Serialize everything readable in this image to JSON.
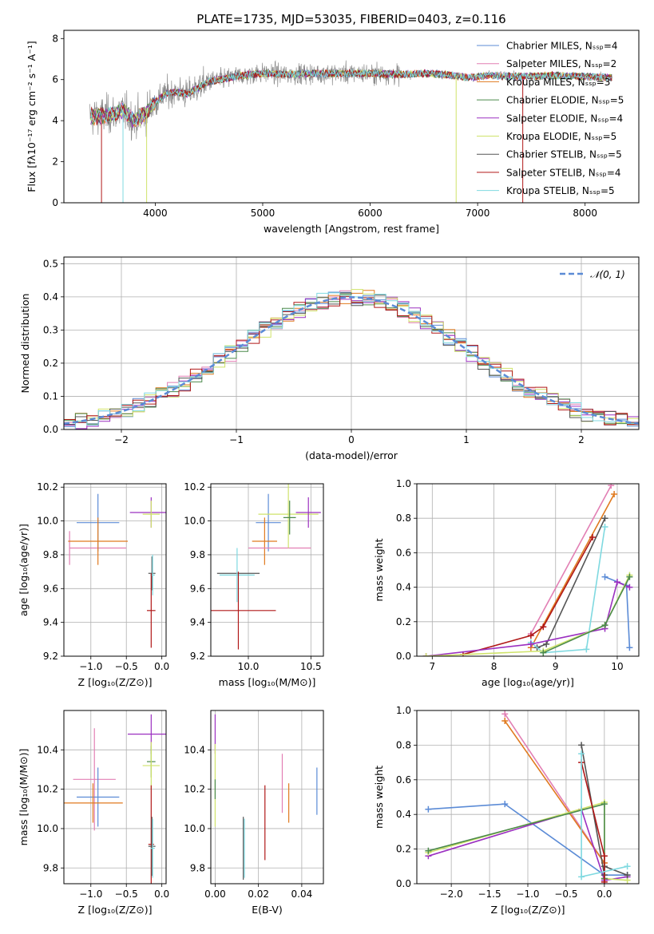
{
  "figure": {
    "title": "PLATE=1735, MJD=53035, FIBERID=0403, z=0.116"
  },
  "colors": {
    "Chabrier MILES": "#5b8bd6",
    "Salpeter MILES": "#e27fb4",
    "Kroupa MILES": "#e07a1f",
    "Chabrier ELODIE": "#4c8a4c",
    "Salpeter ELODIE": "#9b30c0",
    "Kroupa ELODIE": "#cfe36a",
    "Chabrier STELIB": "#555555",
    "Salpeter STELIB": "#b01818",
    "Kroupa STELIB": "#7fd9e0",
    "observed": "#8c8c8c",
    "normal": "#5b8bd6"
  },
  "chart_data": [
    {
      "id": "spectrum",
      "type": "line",
      "xlabel": "wavelength [Angstrom, rest frame]",
      "ylabel": "Flux [fλ10⁻¹⁷ erg cm⁻² s⁻¹ A⁻¹]",
      "xlim": [
        3150,
        8500
      ],
      "ylim": [
        0,
        8.4
      ],
      "xticks": [
        4000,
        5000,
        6000,
        7000,
        8000
      ],
      "yticks": [
        0,
        2,
        4,
        6,
        8
      ],
      "grid": false,
      "legend": "top-right",
      "legend_entries": [
        "Chabrier MILES, Nₛₛₚ=4",
        "Salpeter MILES, Nₛₛₚ=2",
        "Kroupa MILES, Nₛₛₚ=3",
        "Chabrier ELODIE, Nₛₛₚ=5",
        "Salpeter ELODIE, Nₛₛₚ=4",
        "Kroupa ELODIE, Nₛₛₚ=5",
        "Chabrier STELIB, Nₛₛₚ=5",
        "Salpeter STELIB, Nₛₛₚ=4",
        "Kroupa STELIB, Nₛₛₚ=5"
      ],
      "continuum_points": [
        [
          3400,
          4.2
        ],
        [
          3600,
          4.3
        ],
        [
          3700,
          4.5
        ],
        [
          3800,
          4.0
        ],
        [
          3900,
          4.3
        ],
        [
          4000,
          4.9
        ],
        [
          4100,
          5.3
        ],
        [
          4200,
          5.4
        ],
        [
          4300,
          5.3
        ],
        [
          4500,
          5.9
        ],
        [
          4800,
          6.2
        ],
        [
          5000,
          6.3
        ],
        [
          5200,
          6.25
        ],
        [
          5500,
          6.3
        ],
        [
          6000,
          6.3
        ],
        [
          6300,
          6.25
        ],
        [
          6500,
          6.3
        ],
        [
          6700,
          6.25
        ],
        [
          6900,
          6.1
        ],
        [
          7100,
          6.2
        ],
        [
          7400,
          6.15
        ],
        [
          7700,
          6.2
        ],
        [
          8000,
          6.15
        ],
        [
          8250,
          6.1
        ]
      ]
    },
    {
      "id": "residual-hist",
      "type": "line",
      "xlabel": "(data-model)/error",
      "ylabel": "Normed distribution",
      "xlim": [
        -2.5,
        2.5
      ],
      "ylim": [
        0,
        0.52
      ],
      "xticks": [
        -2,
        -1,
        0,
        1,
        2
      ],
      "yticks": [
        0.0,
        0.1,
        0.2,
        0.3,
        0.4,
        0.5
      ],
      "grid": true,
      "legend": "top-right",
      "legend_entries": [
        "𝒩(0, 1)"
      ],
      "bin_width": 0.1
    },
    {
      "id": "age-vs-Z",
      "type": "scatter",
      "xlabel": "Z [log₁₀(Z/Z⊙)]",
      "ylabel": "age  [log₁₀(age/yr)]",
      "xlim": [
        -1.38,
        0.06
      ],
      "ylim": [
        9.2,
        10.22
      ],
      "xticks": [
        -1.0,
        -0.5,
        0.0
      ],
      "yticks": [
        9.2,
        9.4,
        9.6,
        9.8,
        10.0,
        10.2
      ],
      "grid": true,
      "points": [
        {
          "model": "Salpeter MILES",
          "x": -1.3,
          "xerr": 0,
          "y": 9.84,
          "yerr": 0.1
        },
        {
          "model": "Salpeter MILES",
          "x": -0.9,
          "xerr": 0.4,
          "y": 9.84,
          "yerr": 0
        },
        {
          "model": "Chabrier MILES",
          "x": -0.9,
          "xerr": 0.3,
          "y": 9.99,
          "yerr": 0.17
        },
        {
          "model": "Kroupa MILES",
          "x": -0.9,
          "xerr": 0.42,
          "y": 9.88,
          "yerr": 0.14
        },
        {
          "model": "Salpeter ELODIE",
          "x": -0.15,
          "xerr": 0.3,
          "y": 10.05,
          "yerr": 0.09
        },
        {
          "model": "Kroupa ELODIE",
          "x": -0.15,
          "xerr": 0.12,
          "y": 10.04,
          "yerr": 0.08
        },
        {
          "model": "Chabrier STELIB",
          "x": -0.14,
          "xerr": 0.05,
          "y": 9.69,
          "yerr": 0.1
        },
        {
          "model": "Kroupa STELIB",
          "x": -0.13,
          "xerr": 0.03,
          "y": 9.68,
          "yerr": 0.12
        },
        {
          "model": "Salpeter STELIB",
          "x": -0.15,
          "xerr": 0.06,
          "y": 9.47,
          "yerr": 0.22
        }
      ]
    },
    {
      "id": "age-vs-mass",
      "type": "scatter",
      "xlabel": "mass [log₁₀(M/M⊙)]",
      "ylabel": "",
      "xlim": [
        9.7,
        10.6
      ],
      "ylim": [
        9.2,
        10.22
      ],
      "xticks": [
        10.0,
        10.5
      ],
      "yticks": [
        9.2,
        9.4,
        9.6,
        9.8,
        10.0,
        10.2
      ],
      "grid": true,
      "points": [
        {
          "model": "Chabrier STELIB",
          "x": 9.92,
          "xerr": 0.17,
          "y": 9.69,
          "yerr": 0
        },
        {
          "model": "Kroupa STELIB",
          "x": 9.91,
          "xerr": 0.14,
          "y": 9.68,
          "yerr": 0.16
        },
        {
          "model": "Salpeter STELIB",
          "x": 9.92,
          "xerr": 0.3,
          "y": 9.47,
          "yerr": 0.23
        },
        {
          "model": "Chabrier MILES",
          "x": 10.16,
          "xerr": 0.1,
          "y": 9.99,
          "yerr": 0.17
        },
        {
          "model": "Kroupa MILES",
          "x": 10.13,
          "xerr": 0.1,
          "y": 9.88,
          "yerr": 0.14
        },
        {
          "model": "Salpeter MILES",
          "x": 10.25,
          "xerr": 0.25,
          "y": 9.84,
          "yerr": 0
        },
        {
          "model": "Kroupa ELODIE",
          "x": 10.32,
          "xerr": 0.24,
          "y": 10.04,
          "yerr": 0.2
        },
        {
          "model": "Chabrier ELODIE",
          "x": 10.33,
          "xerr": 0.05,
          "y": 10.02,
          "yerr": 0.1
        },
        {
          "model": "Salpeter ELODIE",
          "x": 10.48,
          "xerr": 0.1,
          "y": 10.05,
          "yerr": 0.09
        }
      ]
    },
    {
      "id": "mass-weight-vs-age",
      "type": "line",
      "xlabel": "age  [log₁₀(age/yr)]",
      "ylabel": "mass weight",
      "xlim": [
        6.75,
        10.35
      ],
      "ylim": [
        0,
        1.0
      ],
      "xticks": [
        7,
        8,
        9,
        10
      ],
      "yticks": [
        0.0,
        0.2,
        0.4,
        0.6,
        0.8,
        1.0
      ],
      "grid": true,
      "series": [
        {
          "model": "Salpeter MILES",
          "x": [
            8.6,
            9.9
          ],
          "y": [
            0.13,
            0.99
          ]
        },
        {
          "model": "Kroupa MILES",
          "x": [
            8.6,
            9.95
          ],
          "y": [
            0.05,
            0.94
          ]
        },
        {
          "model": "Chabrier STELIB",
          "x": [
            8.7,
            8.85,
            9.8
          ],
          "y": [
            0.05,
            0.07,
            0.8
          ]
        },
        {
          "model": "Salpeter STELIB",
          "x": [
            7.5,
            8.6,
            8.8,
            9.6
          ],
          "y": [
            0.01,
            0.12,
            0.17,
            0.69
          ]
        },
        {
          "model": "Kroupa STELIB",
          "x": [
            8.6,
            8.8,
            9.5,
            9.8
          ],
          "y": [
            0.08,
            0.02,
            0.04,
            0.75
          ]
        },
        {
          "model": "Chabrier MILES",
          "x": [
            9.8,
            10.15,
            10.2
          ],
          "y": [
            0.46,
            0.41,
            0.05
          ]
        },
        {
          "model": "Salpeter ELODIE",
          "x": [
            6.9,
            8.6,
            9.8,
            10.0,
            10.2
          ],
          "y": [
            0.0,
            0.07,
            0.16,
            0.43,
            0.4
          ]
        },
        {
          "model": "Kroupa ELODIE",
          "x": [
            6.9,
            8.8,
            9.8,
            10.2
          ],
          "y": [
            0.0,
            0.03,
            0.18,
            0.47
          ]
        },
        {
          "model": "Chabrier ELODIE",
          "x": [
            8.8,
            9.8,
            10.2
          ],
          "y": [
            0.02,
            0.18,
            0.46
          ]
        }
      ]
    },
    {
      "id": "mass-vs-Z",
      "type": "scatter",
      "xlabel": "Z [log₁₀(Z/Z⊙)]",
      "ylabel": "mass [log₁₀(M/M⊙)]",
      "xlim": [
        -1.38,
        0.06
      ],
      "ylim": [
        9.72,
        10.6
      ],
      "xticks": [
        -1.0,
        -0.5,
        0.0
      ],
      "yticks": [
        9.8,
        10.0,
        10.2,
        10.4
      ],
      "grid": true,
      "points": [
        {
          "model": "Salpeter MILES",
          "x": -0.95,
          "xerr": 0.3,
          "y": 10.25,
          "yerr": 0.26
        },
        {
          "model": "Chabrier MILES",
          "x": -0.9,
          "xerr": 0.3,
          "y": 10.16,
          "yerr": 0.15
        },
        {
          "model": "Kroupa MILES",
          "x": -0.97,
          "xerr": 0.42,
          "y": 10.13,
          "yerr": 0.1
        },
        {
          "model": "Salpeter ELODIE",
          "x": -0.15,
          "xerr": 0.33,
          "y": 10.48,
          "yerr": 0.1
        },
        {
          "model": "Chabrier ELODIE",
          "x": -0.15,
          "xerr": 0.06,
          "y": 10.34,
          "yerr": 0.08
        },
        {
          "model": "Kroupa ELODIE",
          "x": -0.15,
          "xerr": 0.12,
          "y": 10.32,
          "yerr": 0.12
        },
        {
          "model": "Salpeter STELIB",
          "x": -0.15,
          "xerr": 0.04,
          "y": 9.92,
          "yerr": 0.3
        },
        {
          "model": "Chabrier STELIB",
          "x": -0.14,
          "xerr": 0.05,
          "y": 9.91,
          "yerr": 0.15
        },
        {
          "model": "Kroupa STELIB",
          "x": -0.13,
          "xerr": 0.03,
          "y": 9.9,
          "yerr": 0.15
        }
      ]
    },
    {
      "id": "mass-vs-EBV",
      "type": "scatter",
      "xlabel": "E(B-V)",
      "ylabel": "",
      "xlim": [
        -0.002,
        0.05
      ],
      "ylim": [
        9.72,
        10.6
      ],
      "xticks": [
        0.0,
        0.02,
        0.04
      ],
      "yticks": [
        9.8,
        10.0,
        10.2,
        10.4
      ],
      "grid": true,
      "points": [
        {
          "model": "Salpeter ELODIE",
          "x": 0.0,
          "xerr": 0,
          "y": 10.48,
          "yerr": 0.1
        },
        {
          "model": "Kroupa ELODIE",
          "x": 0.0,
          "xerr": 0,
          "y": 10.22,
          "yerr": 0.21
        },
        {
          "model": "Chabrier ELODIE",
          "x": 0.0,
          "xerr": 0,
          "y": 10.2,
          "yerr": 0.05
        },
        {
          "model": "Chabrier STELIB",
          "x": 0.013,
          "xerr": 0,
          "y": 9.9,
          "yerr": 0.16
        },
        {
          "model": "Kroupa STELIB",
          "x": 0.0135,
          "xerr": 0,
          "y": 9.9,
          "yerr": 0.15
        },
        {
          "model": "Salpeter STELIB",
          "x": 0.023,
          "xerr": 0,
          "y": 10.03,
          "yerr": 0.19
        },
        {
          "model": "Salpeter MILES",
          "x": 0.031,
          "xerr": 0,
          "y": 10.23,
          "yerr": 0.15
        },
        {
          "model": "Kroupa MILES",
          "x": 0.034,
          "xerr": 0,
          "y": 10.13,
          "yerr": 0.1
        },
        {
          "model": "Chabrier MILES",
          "x": 0.047,
          "xerr": 0,
          "y": 10.19,
          "yerr": 0.12
        }
      ]
    },
    {
      "id": "mass-weight-vs-Z",
      "type": "line",
      "xlabel": "Z [log₁₀(Z/Z⊙)]",
      "ylabel": "mass weight",
      "xlim": [
        -2.45,
        0.45
      ],
      "ylim": [
        0,
        1.0
      ],
      "xticks": [
        -2.0,
        -1.5,
        -1.0,
        -0.5,
        0.0
      ],
      "yticks": [
        0.0,
        0.2,
        0.4,
        0.6,
        0.8,
        1.0
      ],
      "grid": true,
      "series": [
        {
          "model": "Chabrier MILES",
          "x": [
            -2.3,
            -1.3,
            0.0,
            0.3
          ],
          "y": [
            0.43,
            0.46,
            0.05,
            0.05
          ]
        },
        {
          "model": "Salpeter MILES",
          "x": [
            -1.3,
            0.0
          ],
          "y": [
            0.98,
            0.12
          ]
        },
        {
          "model": "Kroupa MILES",
          "x": [
            -1.3,
            0.0
          ],
          "y": [
            0.94,
            0.12
          ]
        },
        {
          "model": "Salpeter ELODIE",
          "x": [
            -2.3,
            -0.3,
            0.0,
            0.3
          ],
          "y": [
            0.16,
            0.43,
            0.02,
            0.04
          ]
        },
        {
          "model": "Kroupa ELODIE",
          "x": [
            -2.3,
            0.0,
            0.0,
            0.3
          ],
          "y": [
            0.18,
            0.47,
            0.03,
            0.02
          ]
        },
        {
          "model": "Chabrier ELODIE",
          "x": [
            -2.3,
            0.0,
            0.0
          ],
          "y": [
            0.19,
            0.46,
            0.03
          ]
        },
        {
          "model": "Chabrier STELIB",
          "x": [
            -0.3,
            0.0,
            0.0,
            0.3
          ],
          "y": [
            0.8,
            0.05,
            0.1,
            0.05
          ]
        },
        {
          "model": "Salpeter STELIB",
          "x": [
            -0.3,
            0.0,
            0.0
          ],
          "y": [
            0.7,
            0.16,
            0.01
          ]
        },
        {
          "model": "Kroupa STELIB",
          "x": [
            -0.3,
            -0.3,
            0.3
          ],
          "y": [
            0.75,
            0.04,
            0.1
          ]
        }
      ]
    }
  ]
}
